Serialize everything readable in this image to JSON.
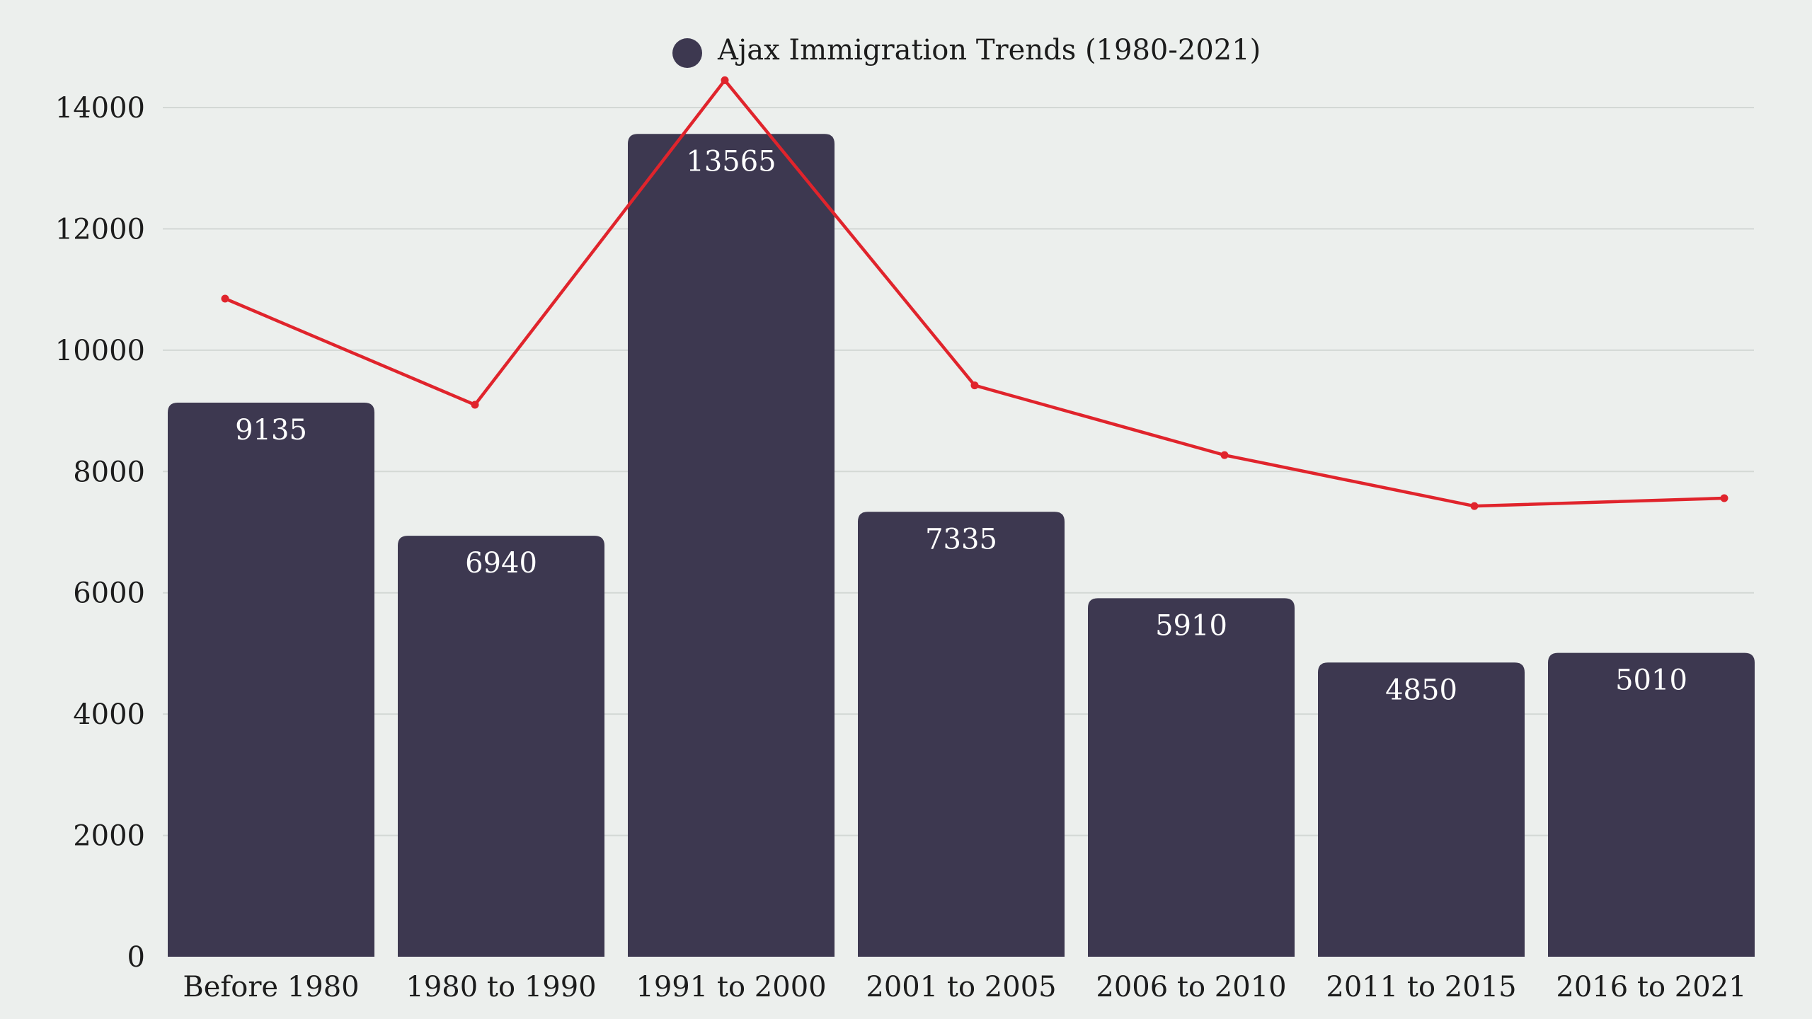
{
  "chart_data": {
    "type": "bar",
    "title": "",
    "xlabel": "",
    "ylabel": "",
    "categories": [
      "Before 1980",
      "1980 to 1990",
      "1991 to 2000",
      "2001 to 2005",
      "2006 to 2010",
      "2011 to 2015",
      "2016 to 2021"
    ],
    "series": [
      {
        "name": "Ajax Immigration Trends (1980-2021)",
        "type": "bar",
        "color": "#3d3850",
        "values": [
          9135,
          6940,
          13565,
          7335,
          5910,
          4850,
          5010
        ]
      },
      {
        "type": "line",
        "color": "#e0242c",
        "values": [
          10850,
          9100,
          14450,
          9420,
          8270,
          7430,
          7560
        ]
      }
    ],
    "ylim": [
      0,
      14000
    ],
    "yticks": [
      0,
      2000,
      4000,
      6000,
      8000,
      10000,
      12000,
      14000
    ],
    "grid": true,
    "legend_position": "top-center"
  }
}
